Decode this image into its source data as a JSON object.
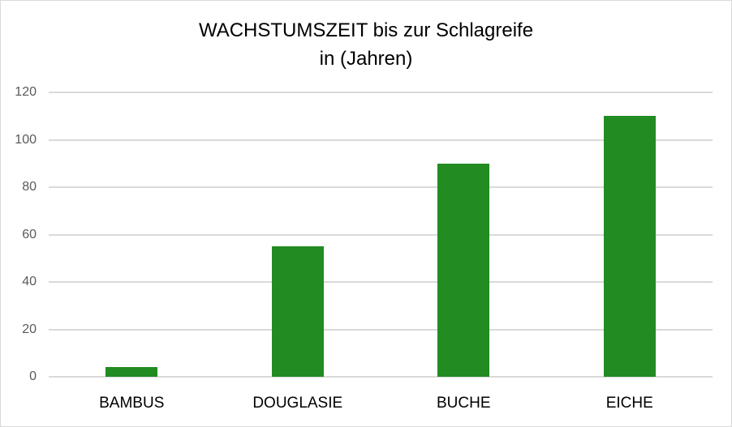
{
  "chart_data": {
    "type": "bar",
    "title": "WACHSTUMSZEIT bis zur Schlagreife in (Jahren)",
    "title_lines": [
      "WACHSTUMSZEIT bis zur Schlagreife",
      "in (Jahren)"
    ],
    "categories": [
      "BAMBUS",
      "DOUGLASIE",
      "BUCHE",
      "EICHE"
    ],
    "values": [
      4,
      55,
      90,
      110
    ],
    "xlabel": "",
    "ylabel": "",
    "ylim": [
      0,
      120
    ],
    "yticks": [
      0,
      20,
      40,
      60,
      80,
      100,
      120
    ],
    "grid": true,
    "legend": "none",
    "bar_color": "#228b22"
  }
}
